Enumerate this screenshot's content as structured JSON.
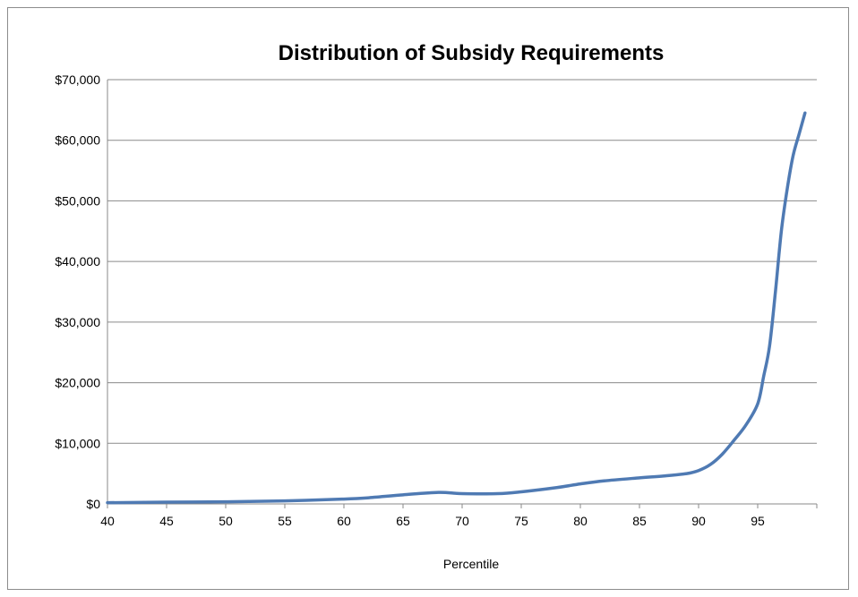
{
  "chart_data": {
    "type": "line",
    "title": "Distribution of Subsidy Requirements",
    "xlabel": "Percentile",
    "ylabel": "",
    "xlim": [
      40,
      100
    ],
    "ylim": [
      0,
      70000
    ],
    "grid": true,
    "x_ticks": [
      40,
      45,
      50,
      55,
      60,
      65,
      70,
      75,
      80,
      85,
      90,
      95
    ],
    "x_tick_labels": [
      "40",
      "45",
      "50",
      "55",
      "60",
      "65",
      "70",
      "75",
      "80",
      "85",
      "90",
      "95"
    ],
    "y_ticks": [
      0,
      10000,
      20000,
      30000,
      40000,
      50000,
      60000,
      70000
    ],
    "y_tick_labels": [
      "$0",
      "$10,000",
      "$20,000",
      "$30,000",
      "$40,000",
      "$50,000",
      "$60,000",
      "$70,000"
    ],
    "series": [
      {
        "color": "#4f7ab3",
        "x": [
          40,
          45,
          50,
          55,
          60,
          62,
          65,
          68,
          70,
          73,
          75,
          78,
          80,
          82,
          85,
          87,
          89,
          90,
          91,
          92,
          93,
          94,
          95,
          95.5,
          96,
          96.5,
          97,
          97.5,
          98,
          98.5,
          99
        ],
        "y": [
          200,
          300,
          350,
          500,
          800,
          1000,
          1500,
          1900,
          1700,
          1700,
          2000,
          2700,
          3300,
          3800,
          4300,
          4600,
          5000,
          5500,
          6500,
          8200,
          10500,
          13000,
          16500,
          21000,
          26000,
          35000,
          45000,
          52000,
          57500,
          61000,
          64500
        ]
      }
    ]
  }
}
